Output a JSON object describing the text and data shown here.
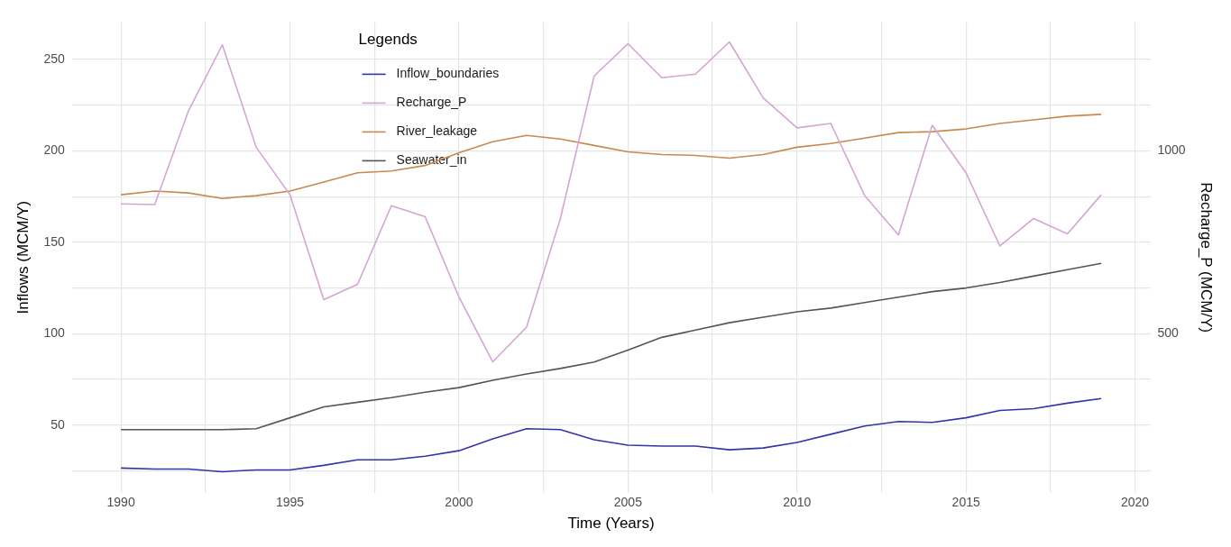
{
  "chart_data": {
    "type": "line",
    "xlabel": "Time (Years)",
    "ylabel": "Inflows (MCM/Y)",
    "y2label": "Recharge_P (MCM/Y)",
    "legend_title": "Legends",
    "x": [
      1990,
      1991,
      1992,
      1993,
      1994,
      1995,
      1996,
      1997,
      1998,
      1999,
      2000,
      2001,
      2002,
      2003,
      2004,
      2005,
      2006,
      2007,
      2008,
      2009,
      2010,
      2011,
      2012,
      2013,
      2014,
      2015,
      2016,
      2017,
      2018,
      2019
    ],
    "series": [
      {
        "name": "Inflow_boundaries",
        "color": "#3333aa",
        "values": [
          26.5,
          26,
          26,
          24.5,
          25.5,
          25.5,
          28,
          31,
          31,
          33,
          36,
          42.5,
          48,
          47.5,
          42,
          39,
          38.5,
          38.5,
          36.5,
          37.5,
          40.5,
          45,
          49.5,
          52,
          51.5,
          54,
          58,
          59,
          62,
          64.5
        ]
      },
      {
        "name": "Recharge_P",
        "color": "#d4a5d4",
        "axis": "y2",
        "values": [
          855,
          853,
          1110,
          1290,
          1010,
          880,
          593,
          635,
          850,
          820,
          600,
          423,
          518,
          815,
          1205,
          1293,
          1200,
          1210,
          1298,
          1145,
          1063,
          1075,
          878,
          770,
          1070,
          940,
          740,
          815,
          773,
          880
        ]
      },
      {
        "name": "River_leakage",
        "color": "#c8894f",
        "values": [
          176,
          178,
          177,
          174,
          175.5,
          178,
          183,
          188,
          189,
          192,
          199,
          205,
          208.5,
          206.5,
          203,
          199.5,
          198,
          197.5,
          196,
          198,
          202,
          204,
          207,
          210,
          210.5,
          212,
          215,
          217,
          219,
          220
        ]
      },
      {
        "name": "Seawater_in",
        "color": "#555555",
        "values": [
          47.5,
          47.5,
          47.5,
          47.5,
          48,
          54,
          60,
          62.5,
          65,
          68,
          70.5,
          74.5,
          78,
          81,
          84.5,
          91,
          98,
          102,
          106,
          109,
          112,
          114,
          117,
          120,
          123,
          125,
          128,
          131.5,
          135,
          138.5
        ]
      }
    ],
    "xlim": [
      1988.55,
      2020.45
    ],
    "xticks": [
      1990,
      {
        "value": 1992.5,
        "label": null
      },
      1995,
      {
        "value": 1997.5,
        "label": null
      },
      2000,
      {
        "value": 2002.5,
        "label": null
      },
      2005,
      {
        "value": 2007.5,
        "label": null
      },
      2010,
      {
        "value": 2012.5,
        "label": null
      },
      2015,
      {
        "value": 2017.5,
        "label": null
      },
      2020
    ],
    "ylim": [
      13,
      270.5
    ],
    "yticks": [
      {
        "value": 25,
        "label": null
      },
      50,
      {
        "value": 75,
        "label": null
      },
      100,
      {
        "value": 125,
        "label": null
      },
      150,
      {
        "value": 175,
        "label": null
      },
      200,
      {
        "value": 225,
        "label": null
      },
      250
    ],
    "y2lim": [
      65,
      1352.5
    ],
    "y2ticks": [
      500,
      1000
    ],
    "grid": true,
    "legend": "top",
    "marker": "none",
    "line_style": "solid"
  }
}
